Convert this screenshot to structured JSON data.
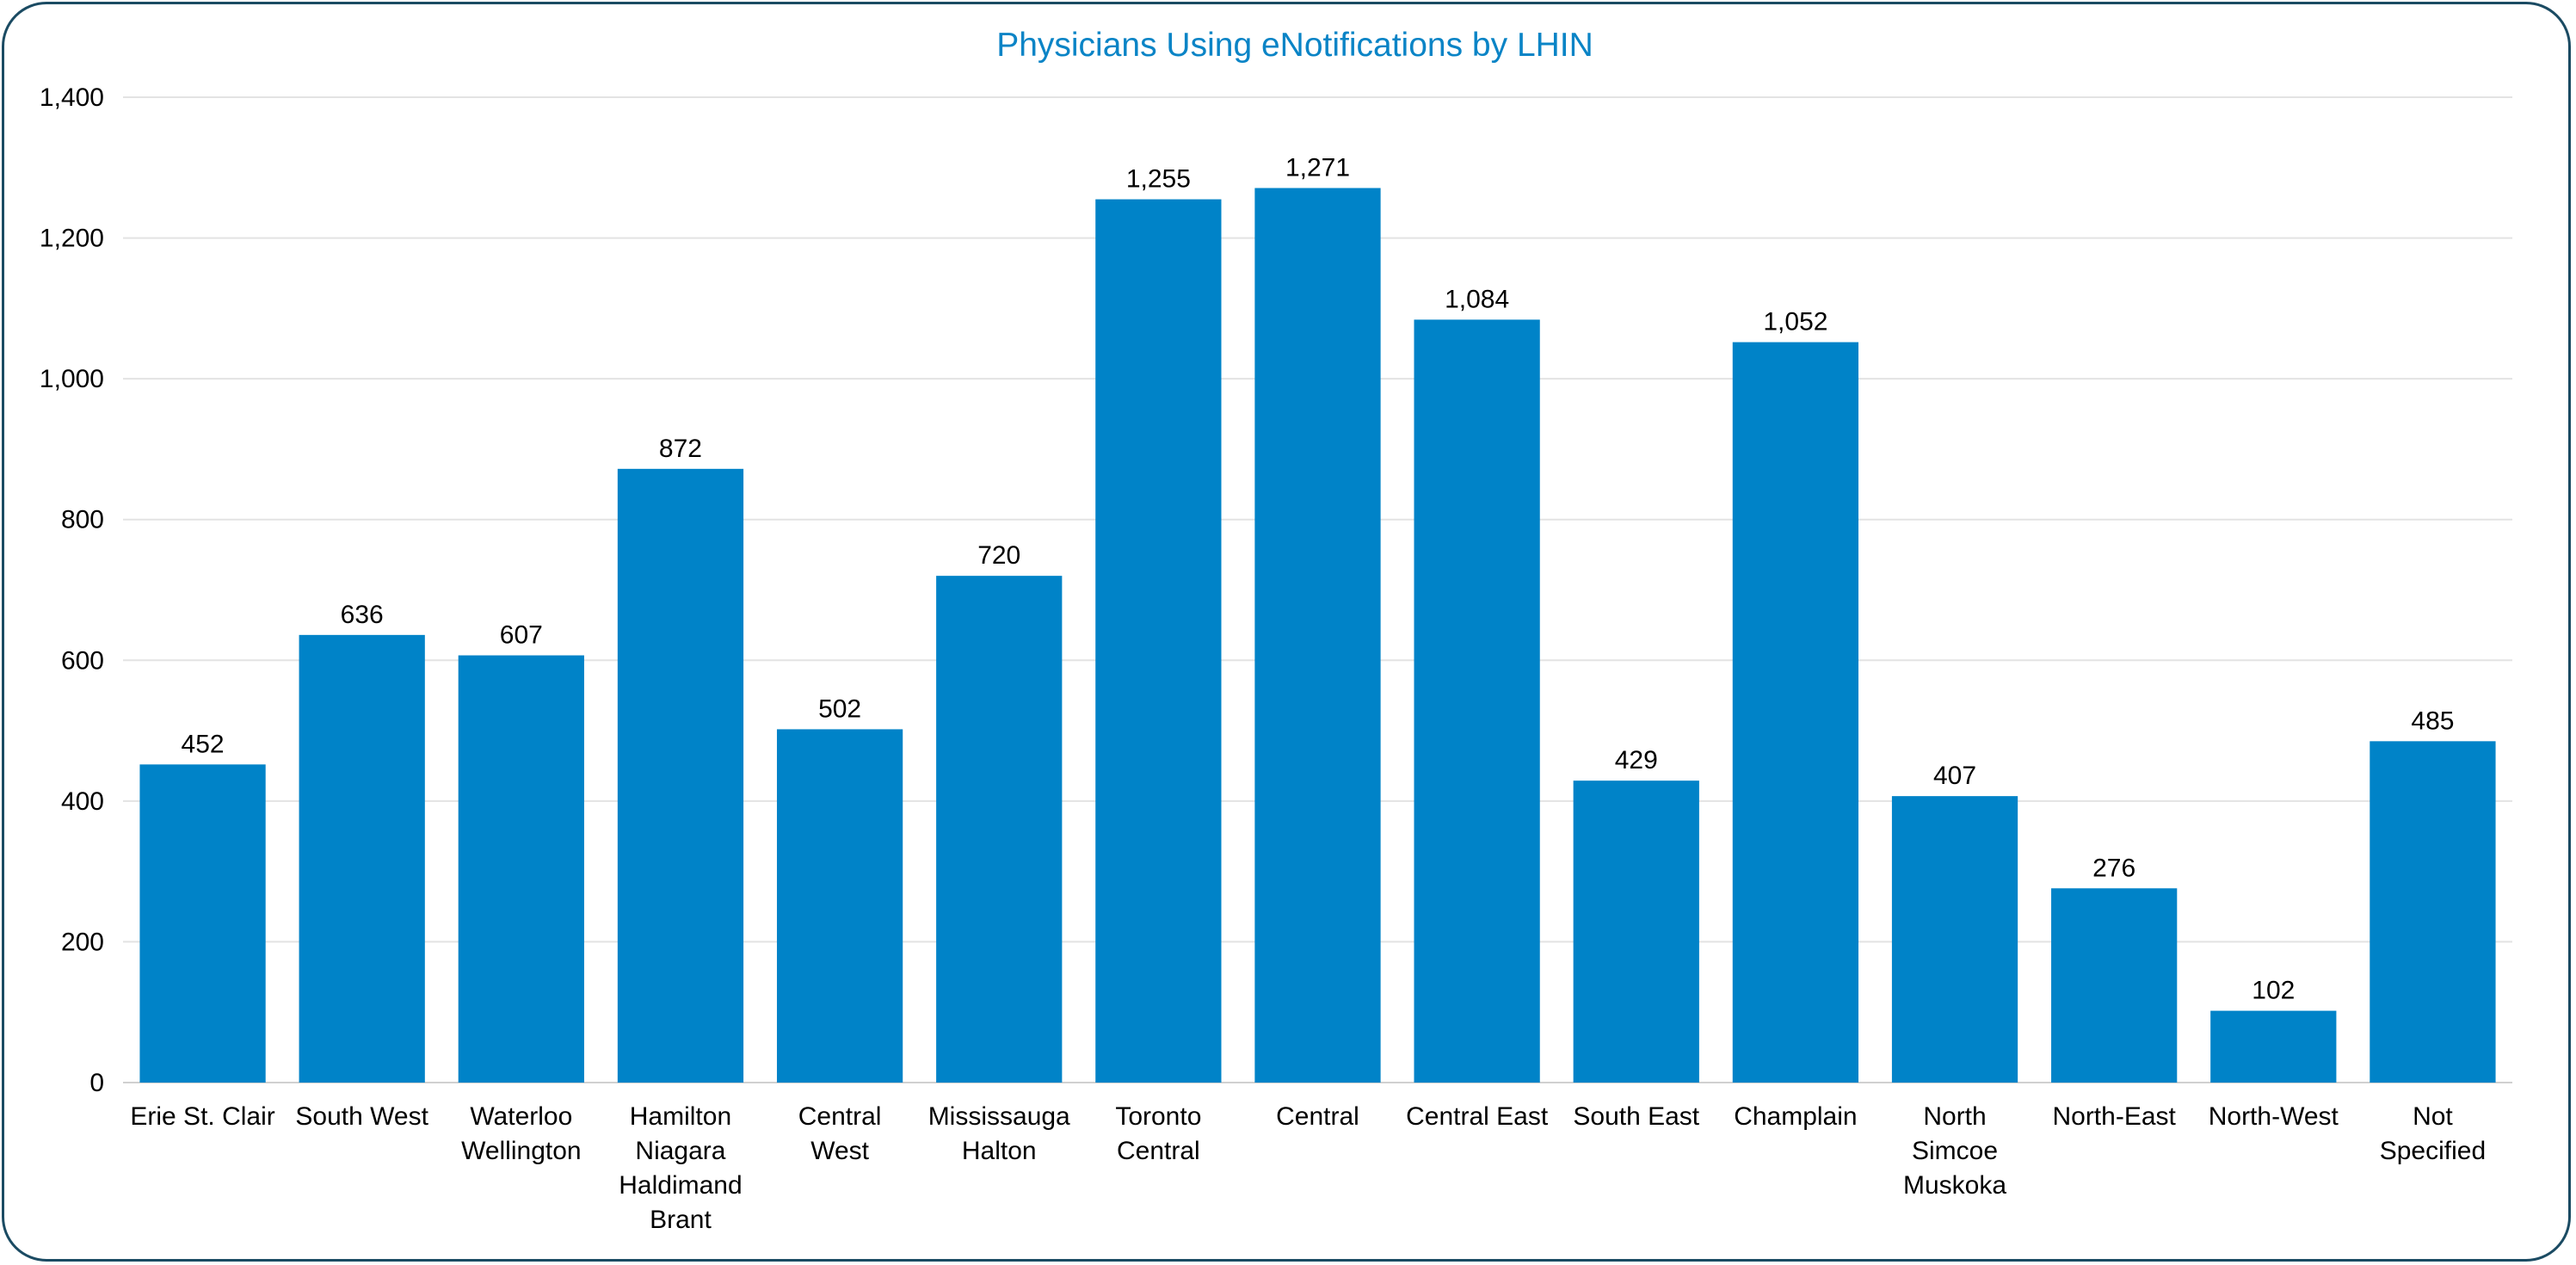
{
  "chart_data": {
    "type": "bar",
    "title": "Physicians Using eNotifications by LHIN",
    "xlabel": "",
    "ylabel": "",
    "categories": [
      "Erie St. Clair",
      "South West",
      "Waterloo Wellington",
      "Hamilton Niagara Haldimand Brant",
      "Central West",
      "Mississauga Halton",
      "Toronto Central",
      "Central",
      "Central East",
      "South East",
      "Champlain",
      "North Simcoe Muskoka",
      "North-East",
      "North-West",
      "Not Specified"
    ],
    "category_lines": [
      [
        "Erie St. Clair"
      ],
      [
        "South West"
      ],
      [
        "Waterloo",
        "Wellington"
      ],
      [
        "Hamilton",
        "Niagara",
        "Haldimand",
        "Brant"
      ],
      [
        "Central",
        "West"
      ],
      [
        "Mississauga",
        "Halton"
      ],
      [
        "Toronto",
        "Central"
      ],
      [
        "Central"
      ],
      [
        "Central East"
      ],
      [
        "South East"
      ],
      [
        "Champlain"
      ],
      [
        "North",
        "Simcoe",
        "Muskoka"
      ],
      [
        "North-East"
      ],
      [
        "North-West"
      ],
      [
        "Not",
        "Specified"
      ]
    ],
    "values": [
      452,
      636,
      607,
      872,
      502,
      720,
      1255,
      1271,
      1084,
      429,
      1052,
      407,
      276,
      102,
      485
    ],
    "value_labels": [
      "452",
      "636",
      "607",
      "872",
      "502",
      "720",
      "1,255",
      "1,271",
      "1,084",
      "429",
      "1,052",
      "407",
      "276",
      "102",
      "485"
    ],
    "ylim": [
      0,
      1400
    ],
    "yticks": [
      0,
      200,
      400,
      600,
      800,
      1000,
      1200,
      1400
    ],
    "ytick_labels": [
      "0",
      "200",
      "400",
      "600",
      "800",
      "1,000",
      "1,200",
      "1,400"
    ],
    "grid": true,
    "legend": "none",
    "colors": {
      "bar": "#0083c8",
      "title": "#0a84c6",
      "grid": "#e3e3e3",
      "border": "#1b4b63"
    }
  }
}
